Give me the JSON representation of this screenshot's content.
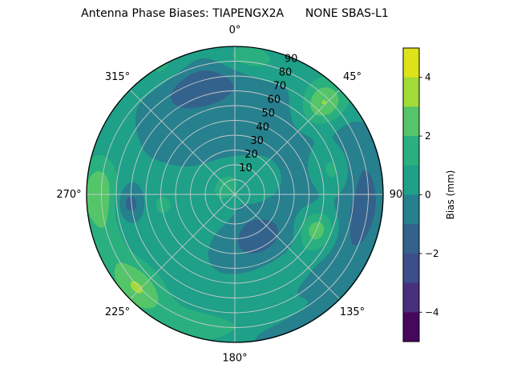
{
  "chart_data": {
    "type": "heatmap",
    "projection": "polar",
    "title": "Antenna Phase Biases: TIAPENGX2A      NONE SBAS-L1",
    "angular_axis": {
      "unit": "degrees",
      "zero_location": "top",
      "direction": "clockwise",
      "tick_labels": [
        "0°",
        "45°",
        "90",
        "135°",
        "180°",
        "225°",
        "270°",
        "315°"
      ]
    },
    "radial_axis": {
      "ticks": [
        10,
        20,
        30,
        40,
        50,
        60,
        70,
        80,
        90
      ],
      "tick_labels": [
        "10",
        "20",
        "30",
        "40",
        "50",
        "60",
        "70",
        "80",
        "90"
      ],
      "limit": 100,
      "label_angle_deg": 22.5
    },
    "colorbar": {
      "label": "Bias (mm)",
      "range": [
        -5,
        5
      ],
      "ticks": [
        4,
        2,
        0,
        -2,
        -4
      ],
      "tick_labels": [
        "4",
        "2",
        "0",
        "−2",
        "−4"
      ],
      "bin_colors": [
        "#46085c",
        "#472f7d",
        "#3d4e8a",
        "#33638d",
        "#27808e",
        "#1fa088",
        "#2ab07e",
        "#54c568",
        "#a2da37",
        "#dde318"
      ]
    },
    "grid_color": "#cccccc",
    "outline_color": "#000000",
    "field": {
      "description": "Bias (mm) as a smooth function of azimuth (deg, clockwise from north) and radial coordinate r (0 at center, 100 at rim): value = base + sum of gaussian bumps exp(-0.5*((daz/saz)^2+(dr/sr)^2))",
      "base": 0.45,
      "bumps": [
        {
          "az": 44,
          "r": 86,
          "amp": 3.1,
          "saz": 6.5,
          "sr": 11
        },
        {
          "az": 5,
          "r": 92,
          "amp": 1.5,
          "saz": 10,
          "sr": 8
        },
        {
          "az": 331,
          "r": 97,
          "amp": 1.1,
          "saz": 8,
          "sr": 7
        },
        {
          "az": 271,
          "r": 92,
          "amp": 2.4,
          "saz": 10,
          "sr": 9
        },
        {
          "az": 226,
          "r": 91,
          "amp": 2.3,
          "saz": 9,
          "sr": 10
        },
        {
          "az": 248,
          "r": 92,
          "amp": 1.0,
          "saz": 14,
          "sr": 9
        },
        {
          "az": 193,
          "r": 91,
          "amp": 1.1,
          "saz": 16,
          "sr": 9
        },
        {
          "az": 113,
          "r": 60,
          "amp": 2.5,
          "saz": 9,
          "sr": 9
        },
        {
          "az": 76,
          "r": 68,
          "amp": 1.6,
          "saz": 10,
          "sr": 9
        },
        {
          "az": 315,
          "r": 6,
          "amp": 1.4,
          "saz": 50,
          "sr": 8
        },
        {
          "az": 147,
          "r": 60,
          "amp": 1.0,
          "saz": 24,
          "sr": 8
        },
        {
          "az": 263,
          "r": 50,
          "amp": 0.9,
          "saz": 12,
          "sr": 10
        },
        {
          "az": 343,
          "r": 78,
          "amp": -1.7,
          "saz": 15,
          "sr": 11
        },
        {
          "az": 345,
          "r": 55,
          "amp": -0.8,
          "saz": 50,
          "sr": 30
        },
        {
          "az": 95,
          "r": 88,
          "amp": -1.5,
          "saz": 24,
          "sr": 11
        },
        {
          "az": 95,
          "r": 60,
          "amp": -0.7,
          "saz": 38,
          "sr": 22
        },
        {
          "az": 153,
          "r": 30,
          "amp": -1.75,
          "saz": 30,
          "sr": 13
        },
        {
          "az": 170,
          "r": 60,
          "amp": -0.5,
          "saz": 35,
          "sr": 18
        },
        {
          "az": 265,
          "r": 71,
          "amp": -1.8,
          "saz": 6.5,
          "sr": 7
        },
        {
          "az": 162,
          "r": 98,
          "amp": -0.9,
          "saz": 14,
          "sr": 5
        }
      ]
    }
  }
}
